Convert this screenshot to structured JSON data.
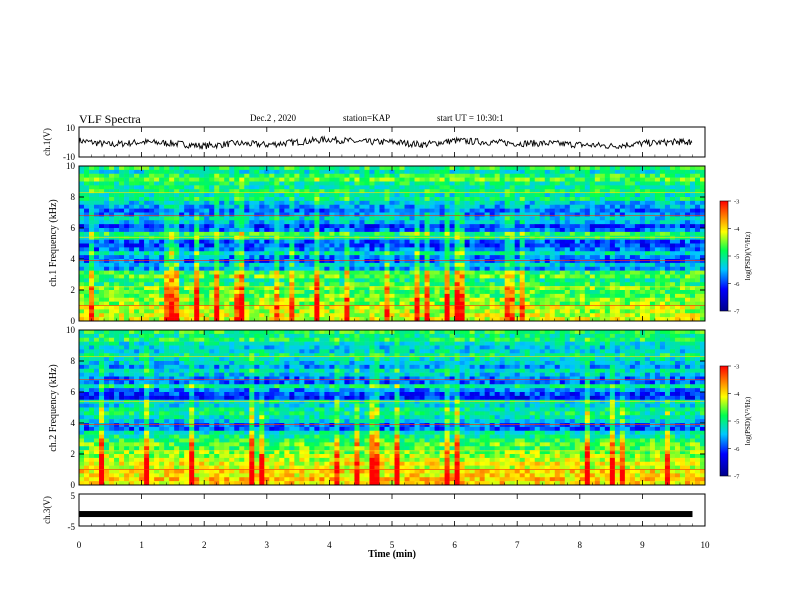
{
  "header": {
    "title": "VLF Spectra",
    "date": "Dec.2 , 2020",
    "station": "station=KAP",
    "start": "start UT = 10:30:1"
  },
  "chart_data": [
    {
      "type": "line",
      "ylabel": "ch.1(V)",
      "ylim": [
        -10,
        10
      ],
      "yticks": [
        "10",
        "-10"
      ],
      "x_range_min": [
        0,
        9.8
      ],
      "description_values": {
        "x": [
          0,
          0.5,
          1,
          1.5,
          2,
          2.5,
          3,
          3.5,
          4,
          4.5,
          5,
          5.5,
          6,
          6.5,
          7,
          7.5,
          8,
          8.5,
          9,
          9.5,
          9.8
        ],
        "y": [
          1,
          -2,
          0,
          -1,
          -3,
          -1,
          -2,
          0,
          2,
          0,
          0,
          -2,
          1,
          0,
          -1,
          -1,
          -2,
          -3,
          -1,
          0,
          0
        ]
      }
    },
    {
      "type": "heatmap",
      "ylabel": "ch.1 Frequency (kHz)",
      "ylim": [
        0,
        10
      ],
      "yticks": [
        "0",
        "2",
        "4",
        "6",
        "8",
        "10"
      ],
      "colorbar": {
        "label": "log(PSD)(V²/Hz)",
        "range": [
          -7,
          -3
        ],
        "ticks": [
          "-3",
          "-4",
          "-5",
          "-6",
          "-7"
        ]
      }
    },
    {
      "type": "heatmap",
      "ylabel": "ch.2 Frequency (kHz)",
      "ylim": [
        0,
        10
      ],
      "yticks": [
        "0",
        "2",
        "4",
        "6",
        "8",
        "10"
      ],
      "colorbar": {
        "label": "log(PSD)(V²/Hz)",
        "range": [
          -7,
          -3
        ],
        "ticks": [
          "-3",
          "-4",
          "-5",
          "-6",
          "-7"
        ]
      }
    },
    {
      "type": "line",
      "ylabel": "ch.3(V)",
      "ylim": [
        -5,
        5
      ],
      "yticks": [
        "5",
        "-5"
      ],
      "x": [
        0,
        9.8
      ],
      "y": [
        -1,
        -1
      ]
    }
  ],
  "xaxis": {
    "label": "Time (min)",
    "range": [
      0,
      10
    ],
    "ticks": [
      "0",
      "1",
      "2",
      "3",
      "4",
      "5",
      "6",
      "7",
      "8",
      "9",
      "10"
    ]
  },
  "colors": {
    "background": "#ffffff",
    "trace": "#000000",
    "spectrum_low": "#0000b0",
    "spectrum_mid": "#00ff66",
    "spectrum_high": "#ff0000"
  }
}
